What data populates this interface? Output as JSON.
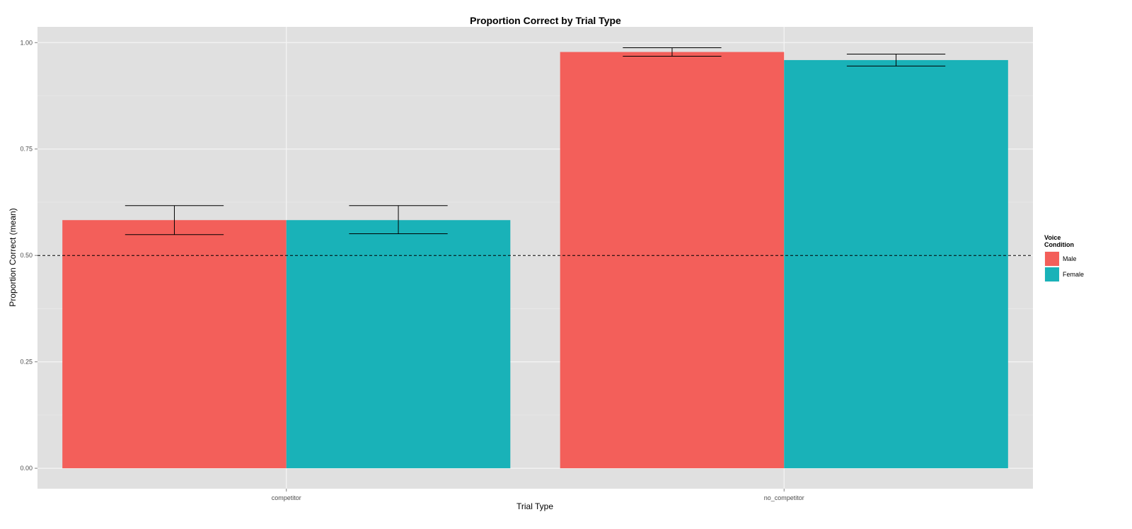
{
  "chart_data": {
    "type": "bar",
    "title": "Proportion Correct by Trial Type",
    "xlabel": "Trial Type",
    "ylabel": "Proportion Correct (mean)",
    "categories": [
      "competitor",
      "no_competitor"
    ],
    "series": [
      {
        "name": "Male",
        "color": "#F35F5A",
        "values": [
          0.583,
          0.978
        ],
        "err_low": [
          0.549,
          0.968
        ],
        "err_high": [
          0.617,
          0.988
        ]
      },
      {
        "name": "Female",
        "color": "#19B2B8",
        "values": [
          0.583,
          0.959
        ],
        "err_low": [
          0.551,
          0.945
        ],
        "err_high": [
          0.617,
          0.973
        ]
      }
    ],
    "ylim": [
      -0.048,
      1.037
    ],
    "yticks": [
      0.0,
      0.25,
      0.5,
      0.75,
      1.0
    ],
    "ytick_labels": [
      "0.00",
      "0.25",
      "0.50",
      "0.75",
      "1.00"
    ],
    "reference_line": {
      "y": 0.5,
      "style": "dashed"
    },
    "legend": {
      "title_line1": "Voice",
      "title_line2": "Condition",
      "position": "right"
    },
    "panel_background": "#E0E0E0",
    "grid": true
  }
}
